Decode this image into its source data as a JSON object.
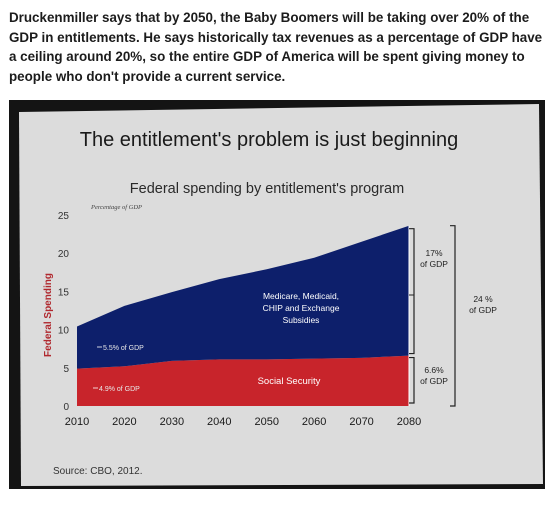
{
  "article": {
    "caption": "Druckenmiller says that by 2050, the Baby Boomers will be taking over 20% of the GDP in entitlements. He says historically tax revenues as a percentage of GDP have a ceiling around 20%, so the entire GDP of America will be spent giving money to people who don't provide a current service."
  },
  "chart_data": {
    "type": "area",
    "title": "The entitlement's problem is just beginning",
    "subtitle": "Federal spending by entitlement's program",
    "unit_label": "Percentage of GDP",
    "ylabel": "Federal Spending",
    "xlabel": "",
    "xlim": [
      2010,
      2080
    ],
    "ylim": [
      0,
      25
    ],
    "x_ticks": [
      "2010",
      "2020",
      "2030",
      "2040",
      "2050",
      "2060",
      "2070",
      "2080"
    ],
    "y_ticks": [
      "0",
      "5",
      "10",
      "15",
      "20",
      "25"
    ],
    "grid": false,
    "stacked": true,
    "x": [
      2010,
      2020,
      2030,
      2040,
      2050,
      2060,
      2070,
      2080
    ],
    "series": [
      {
        "name": "Social Security",
        "color": "#c8242b",
        "values": [
          4.9,
          5.2,
          5.9,
          6.1,
          6.1,
          6.2,
          6.3,
          6.6
        ]
      },
      {
        "name": "Medicare, Medicaid, CHIP and Exchange Subsidies",
        "color": "#0d1f6b",
        "values": [
          5.5,
          7.9,
          9.0,
          10.5,
          11.8,
          13.2,
          15.2,
          17.0
        ]
      }
    ],
    "annotations": [
      {
        "text": "5.5% of GDP",
        "series": "Medicare, Medicaid, CHIP and Exchange Subsidies",
        "x": 2010
      },
      {
        "text": "4.9% of GDP",
        "series": "Social Security",
        "x": 2010
      }
    ],
    "brackets": [
      {
        "text_lines": [
          "17%",
          "of GDP"
        ]
      },
      {
        "text_lines": [
          "6.6%",
          "of GDP"
        ]
      },
      {
        "text_lines": [
          "24 %",
          "of GDP"
        ]
      }
    ],
    "source": "Source: CBO, 2012."
  }
}
